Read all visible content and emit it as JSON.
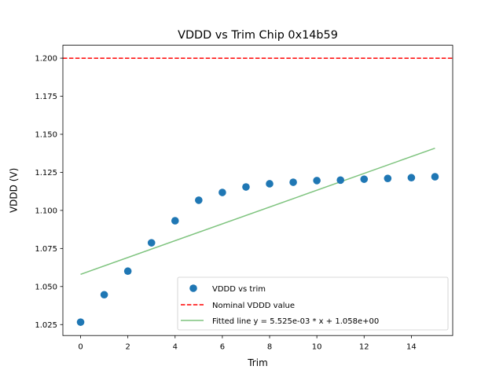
{
  "chart_data": {
    "type": "scatter",
    "title": "VDDD vs Trim Chip 0x14b59",
    "xlabel": "Trim",
    "ylabel": "VDDD (V)",
    "xlim": [
      -0.75,
      15.75
    ],
    "ylim": [
      1.0178,
      1.2085
    ],
    "xticks": [
      0,
      2,
      4,
      6,
      8,
      10,
      12,
      14
    ],
    "xtick_labels": [
      "0",
      "2",
      "4",
      "6",
      "8",
      "10",
      "12",
      "14"
    ],
    "yticks": [
      1.025,
      1.05,
      1.075,
      1.1,
      1.125,
      1.15,
      1.175,
      1.2
    ],
    "ytick_labels": [
      "1.025",
      "1.050",
      "1.075",
      "1.100",
      "1.125",
      "1.150",
      "1.175",
      "1.200"
    ],
    "grid": false,
    "legend_position": "lower-right",
    "series": [
      {
        "name": "VDDD vs trim",
        "kind": "scatter",
        "color": "#1f77b4",
        "x": [
          0,
          1,
          2,
          3,
          4,
          5,
          6,
          7,
          8,
          9,
          10,
          11,
          12,
          13,
          14,
          15
        ],
        "y": [
          1.0266,
          1.0446,
          1.0601,
          1.0787,
          1.0932,
          1.1067,
          1.1118,
          1.1154,
          1.1175,
          1.1185,
          1.1196,
          1.1199,
          1.1205,
          1.121,
          1.1215,
          1.1221
        ]
      },
      {
        "name": "Nominal VDDD value",
        "kind": "hline",
        "color": "#ff0000",
        "dash": true,
        "y": 1.2
      },
      {
        "name": "Fitted line y = 5.525e-03 * x + 1.058e+00",
        "kind": "line",
        "color": "#7fc47f",
        "slope": 0.005525,
        "intercept": 1.058,
        "x": [
          0,
          15
        ]
      }
    ]
  }
}
